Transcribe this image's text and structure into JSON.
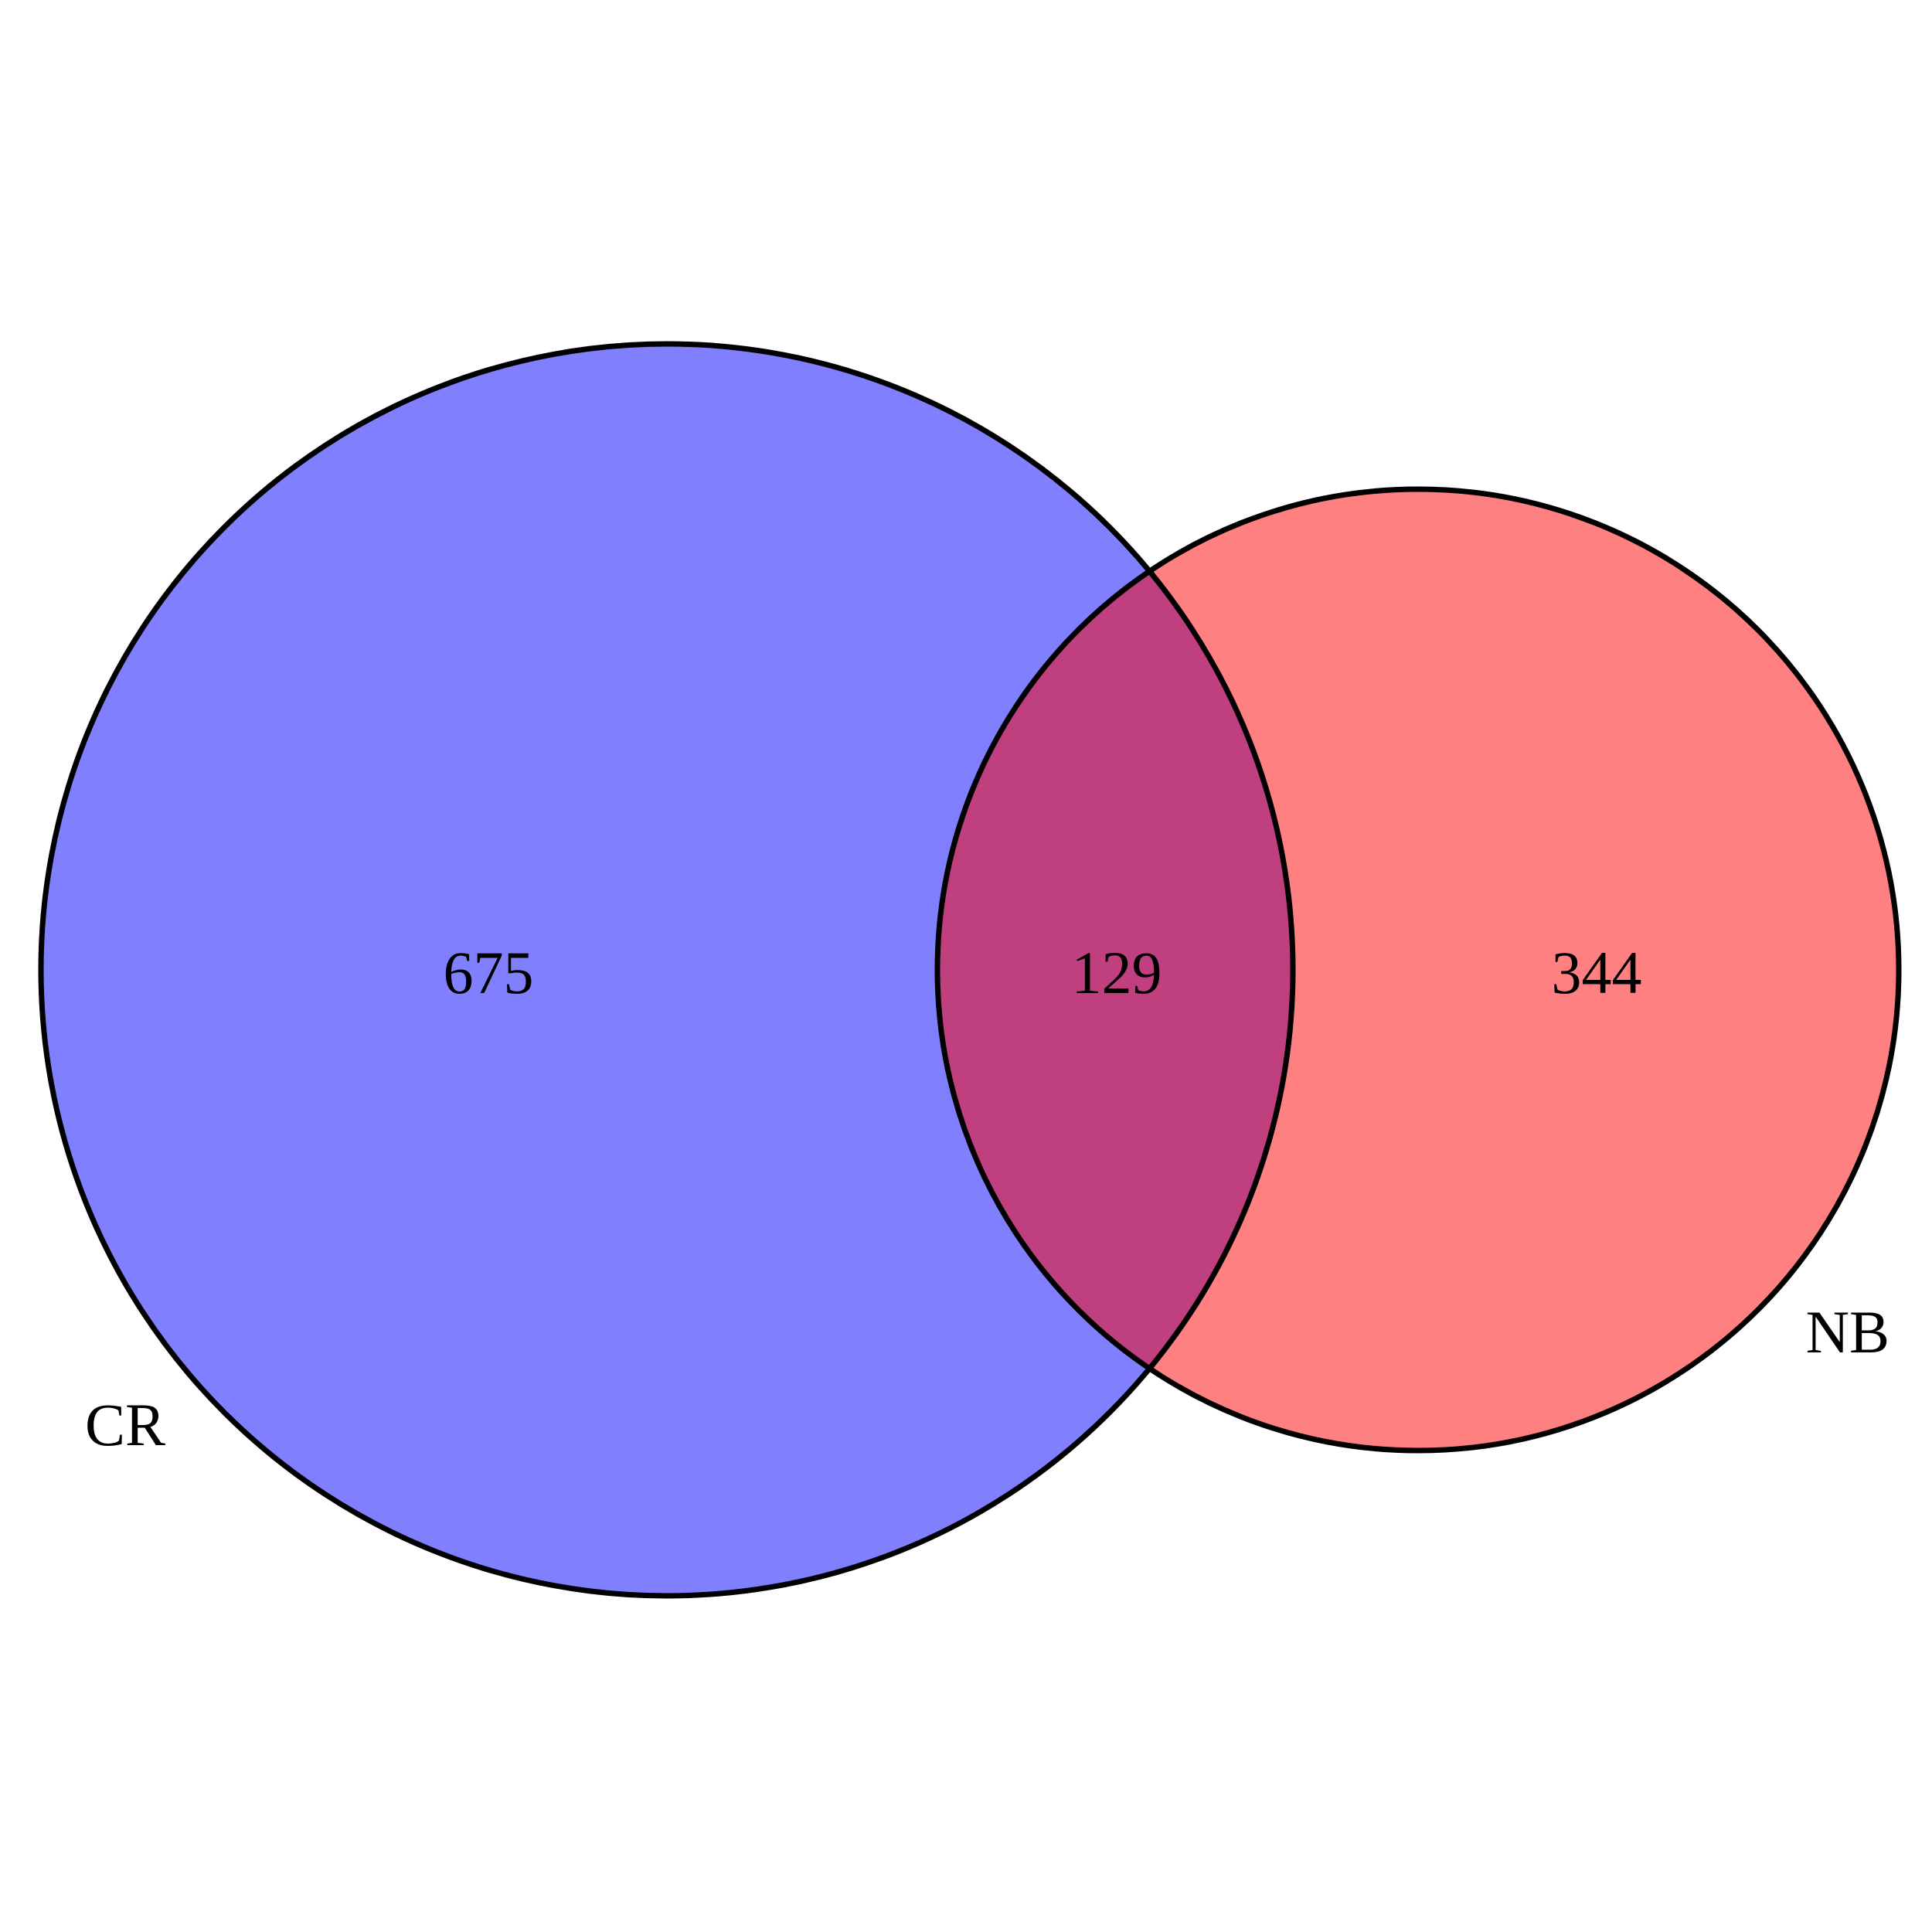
{
  "diagram": {
    "type": "venn",
    "sets": [
      {
        "id": "cr",
        "name": "CR",
        "only_count": "675",
        "color": "#8080FF"
      },
      {
        "id": "nb",
        "name": "NB",
        "only_count": "344",
        "color": "#FF8080"
      }
    ],
    "intersection": {
      "count": "129",
      "color": "#BF3F7F"
    },
    "outline_color": "#000000",
    "background": "#FFFFFF"
  }
}
